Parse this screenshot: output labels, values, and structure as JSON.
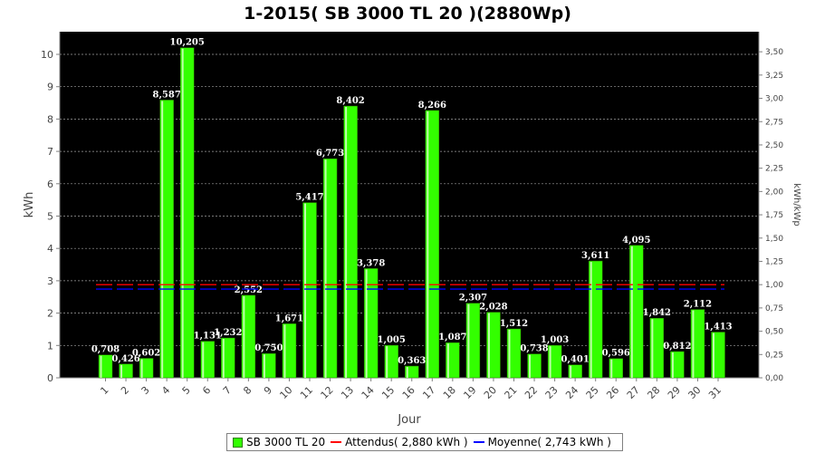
{
  "chart_data": {
    "type": "bar",
    "title": "1-2015( SB 3000 TL 20 )(2880Wp)",
    "xlabel": "Jour",
    "ylabel": "kWh",
    "y2label": "kWh/kWp",
    "ylim": [
      0,
      10.7
    ],
    "y2lim": [
      0,
      3.7153
    ],
    "yticks": [
      "0",
      "1",
      "2",
      "3",
      "4",
      "5",
      "6",
      "7",
      "8",
      "9",
      "10"
    ],
    "y2ticks": [
      "0,00",
      "0,25",
      "0,50",
      "0,75",
      "1,00",
      "1,25",
      "1,50",
      "1,75",
      "2,00",
      "2,25",
      "2,50",
      "2,75",
      "3,00",
      "3,25",
      "3,50"
    ],
    "grid": true,
    "legend_position": "bottom",
    "categories": [
      "1",
      "2",
      "3",
      "4",
      "5",
      "6",
      "7",
      "8",
      "9",
      "10",
      "11",
      "12",
      "13",
      "14",
      "15",
      "16",
      "17",
      "18",
      "19",
      "20",
      "21",
      "22",
      "23",
      "24",
      "25",
      "26",
      "27",
      "28",
      "29",
      "30",
      "31"
    ],
    "series": [
      {
        "name": "SB 3000 TL 20",
        "color": "#33ff00",
        "values": [
          0.708,
          0.426,
          0.602,
          8.587,
          10.205,
          1.131,
          1.232,
          2.552,
          0.75,
          1.671,
          5.417,
          6.773,
          8.402,
          3.378,
          1.005,
          0.363,
          8.266,
          1.087,
          2.307,
          2.028,
          1.512,
          0.738,
          1.003,
          0.401,
          3.611,
          0.596,
          4.095,
          1.842,
          0.812,
          2.112,
          1.413
        ],
        "labels": [
          "0,708",
          "0,426",
          "0,602",
          "8,587",
          "10,205",
          "1,131",
          "1,232",
          "2,552",
          "0,750",
          "1,671",
          "5,417",
          "6,773",
          "8,402",
          "3,378",
          "1,005",
          "0,363",
          "8,266",
          "1,087",
          "2,307",
          "2,028",
          "1,512",
          "0,738",
          "1,003",
          "0,401",
          "3,611",
          "0,596",
          "4,095",
          "1,842",
          "0,812",
          "2,112",
          "1,413"
        ]
      }
    ],
    "reference_lines": [
      {
        "name": "Attendus( 2,880 kWh )",
        "value": 2.88,
        "color": "#ff0000"
      },
      {
        "name": "Moyenne( 2,743 kWh )",
        "value": 2.743,
        "color": "#0000ff"
      }
    ]
  },
  "legend": {
    "items": [
      {
        "label": "SB 3000 TL 20",
        "kind": "box",
        "color": "#33ff00"
      },
      {
        "label": "Attendus( 2,880 kWh )",
        "kind": "line",
        "color": "#ff0000"
      },
      {
        "label": "Moyenne( 2,743 kWh )",
        "kind": "line",
        "color": "#0000ff"
      }
    ]
  }
}
